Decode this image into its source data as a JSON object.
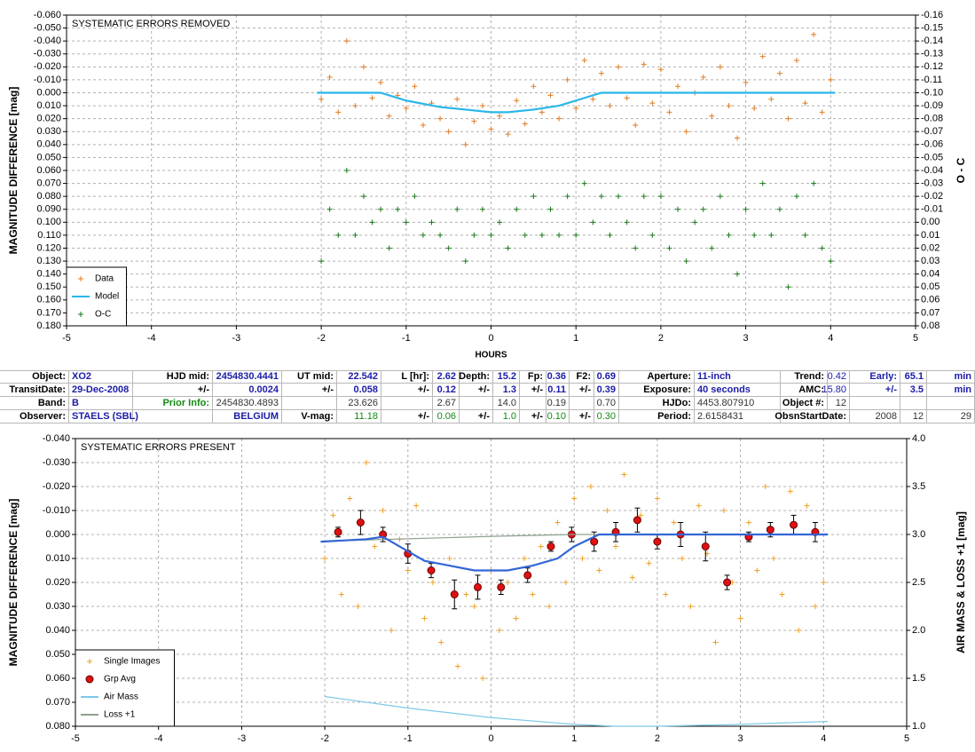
{
  "chart_data": [
    {
      "type": "scatter",
      "title": "SYSTEMATIC ERRORS REMOVED",
      "xlabel": "HOURS",
      "ylabel": "MAGNITUDE DIFFERENCE [mag]",
      "y2label": "O - C",
      "xlim": [
        -5,
        5
      ],
      "xticks": [
        -5,
        -4,
        -3,
        -2,
        -1,
        0,
        1,
        2,
        3,
        4,
        5
      ],
      "ylim": [
        0.18,
        -0.06
      ],
      "yticks": [
        {
          "value": -0.06,
          "label": "-0.060"
        },
        {
          "value": -0.05,
          "label": "-0.050"
        },
        {
          "value": -0.04,
          "label": "-0.040"
        },
        {
          "value": -0.03,
          "label": "-0.030"
        },
        {
          "value": -0.02,
          "label": "-0.020"
        },
        {
          "value": -0.01,
          "label": "-0.010"
        },
        {
          "value": 0,
          "label": "0.000"
        },
        {
          "value": 0.01,
          "label": "0.010"
        },
        {
          "value": 0.02,
          "label": "0.020"
        },
        {
          "value": 0.03,
          "label": "0.030"
        },
        {
          "value": 0.04,
          "label": "0.040"
        },
        {
          "value": 0.05,
          "label": "0.050"
        },
        {
          "value": 0.06,
          "label": "0.060"
        },
        {
          "value": 0.07,
          "label": "0.070"
        },
        {
          "value": 0.08,
          "label": "0.080"
        },
        {
          "value": 0.09,
          "label": "0.090"
        },
        {
          "value": 0.1,
          "label": "0.100"
        },
        {
          "value": 0.11,
          "label": "0.110"
        },
        {
          "value": 0.12,
          "label": "0.120"
        },
        {
          "value": 0.13,
          "label": "0.130"
        },
        {
          "value": 0.14,
          "label": "0.140"
        },
        {
          "value": 0.15,
          "label": "0.150"
        },
        {
          "value": 0.16,
          "label": "0.160"
        },
        {
          "value": 0.17,
          "label": "0.170"
        },
        {
          "value": 0.18,
          "label": "0.180"
        }
      ],
      "y2lim": [
        0.08,
        -0.16
      ],
      "y2ticks": [
        -0.16,
        -0.15,
        -0.14,
        -0.13,
        -0.12,
        -0.11,
        {
          "value": -0.1,
          "label": "-0.10"
        },
        -0.09,
        -0.08,
        -0.07,
        -0.06,
        -0.05,
        -0.04,
        -0.03,
        -0.02,
        -0.01,
        {
          "value": 0,
          "label": "0.00"
        },
        0.01,
        0.02,
        0.03,
        0.04,
        0.05,
        0.06,
        0.07,
        0.08
      ],
      "grid": true,
      "legend": "lower left",
      "series": [
        {
          "name": "Data",
          "type": "scatter",
          "marker": "+",
          "color": "#e07b20",
          "x": [
            -2,
            -1.9,
            -1.8,
            -1.7,
            -1.6,
            -1.5,
            -1.4,
            -1.3,
            -1.2,
            -1.1,
            -1,
            -0.9,
            -0.8,
            -0.7,
            -0.6,
            -0.5,
            -0.4,
            -0.3,
            -0.2,
            -0.1,
            0,
            0.1,
            0.2,
            0.3,
            0.4,
            0.5,
            0.6,
            0.7,
            0.8,
            0.9,
            1,
            1.1,
            1.2,
            1.3,
            1.4,
            1.5,
            1.6,
            1.7,
            1.8,
            1.9,
            2,
            2.1,
            2.2,
            2.3,
            2.4,
            2.5,
            2.6,
            2.7,
            2.8,
            2.9,
            3,
            3.1,
            3.2,
            3.3,
            3.4,
            3.5,
            3.6,
            3.7,
            3.8,
            3.9,
            4
          ],
          "values": [
            0.005,
            -0.012,
            0.015,
            -0.04,
            0.01,
            -0.02,
            0.004,
            -0.008,
            0.018,
            0.002,
            0.012,
            -0.005,
            0.025,
            0.008,
            0.02,
            0.03,
            0.005,
            0.04,
            0.022,
            0.01,
            0.028,
            0.018,
            0.032,
            0.006,
            0.024,
            -0.005,
            0.015,
            0.002,
            0.02,
            -0.01,
            0.012,
            -0.025,
            0.005,
            -0.015,
            0.01,
            -0.02,
            0.004,
            0.025,
            -0.022,
            0.008,
            -0.018,
            0.015,
            -0.005,
            0.03,
            0,
            -0.012,
            0.018,
            -0.02,
            0.01,
            0.035,
            -0.008,
            0.012,
            -0.028,
            0.005,
            -0.015,
            0.02,
            -0.025,
            0.008,
            -0.045,
            0.015,
            -0.01
          ]
        },
        {
          "name": "Model",
          "type": "line",
          "color": "#2ab7e8",
          "x": [
            -2.05,
            -1.3,
            -1,
            -0.6,
            -0.3,
            0,
            0.2,
            0.5,
            0.8,
            1,
            1.3,
            4.05
          ],
          "values": [
            0,
            0,
            0.006,
            0.011,
            0.013,
            0.015,
            0.015,
            0.013,
            0.01,
            0.006,
            0,
            0
          ]
        },
        {
          "name": "O-C",
          "type": "scatter",
          "marker": "+",
          "color": "#1a7a1a",
          "axis": "y2",
          "x": [
            -2,
            -1.9,
            -1.8,
            -1.7,
            -1.6,
            -1.5,
            -1.4,
            -1.3,
            -1.2,
            -1.1,
            -1,
            -0.9,
            -0.8,
            -0.7,
            -0.6,
            -0.5,
            -0.4,
            -0.3,
            -0.2,
            -0.1,
            0,
            0.1,
            0.2,
            0.3,
            0.4,
            0.5,
            0.6,
            0.7,
            0.8,
            0.9,
            1,
            1.1,
            1.2,
            1.3,
            1.4,
            1.5,
            1.6,
            1.7,
            1.8,
            1.9,
            2,
            2.1,
            2.2,
            2.3,
            2.4,
            2.5,
            2.6,
            2.7,
            2.8,
            2.9,
            3,
            3.1,
            3.2,
            3.3,
            3.4,
            3.5,
            3.6,
            3.7,
            3.8,
            3.9,
            4
          ],
          "values": [
            0.03,
            -0.01,
            0.01,
            -0.04,
            0.01,
            -0.02,
            0,
            -0.01,
            0.02,
            -0.01,
            0,
            -0.02,
            0.01,
            0,
            0.01,
            0.02,
            -0.01,
            0.03,
            0.01,
            -0.01,
            0.01,
            0,
            0.02,
            -0.01,
            0.01,
            -0.02,
            0.01,
            -0.01,
            0.01,
            -0.02,
            0.01,
            -0.03,
            0,
            -0.02,
            0.01,
            -0.02,
            0,
            0.02,
            -0.02,
            0.01,
            -0.02,
            0.02,
            -0.01,
            0.03,
            0,
            -0.01,
            0.02,
            -0.02,
            0.01,
            0.04,
            -0.01,
            0.01,
            -0.03,
            0.01,
            -0.01,
            0.05,
            -0.02,
            0.01,
            -0.03,
            0.02,
            0.03
          ]
        }
      ]
    },
    {
      "type": "scatter",
      "title": "SYSTEMATIC ERRORS PRESENT",
      "ylabel": "MAGNITUDE DIFFERENCE [mag]",
      "y2label": "AIR MASS & LOSS +1 [mag]",
      "xlim": [
        -5,
        5
      ],
      "xticks": [
        -5,
        -4,
        -3,
        -2,
        -1,
        0,
        1,
        2,
        3,
        4,
        5
      ],
      "ylim": [
        0.08,
        -0.04
      ],
      "yticks": [
        {
          "value": -0.04,
          "label": "-0.040"
        },
        {
          "value": -0.03,
          "label": "-0.030"
        },
        {
          "value": -0.02,
          "label": "-0.020"
        },
        {
          "value": -0.01,
          "label": "-0.010"
        },
        {
          "value": 0,
          "label": "0.000"
        },
        {
          "value": 0.01,
          "label": "0.010"
        },
        {
          "value": 0.02,
          "label": "0.020"
        },
        {
          "value": 0.03,
          "label": "0.030"
        },
        {
          "value": 0.04,
          "label": "0.040"
        },
        {
          "value": 0.05,
          "label": "0.050"
        },
        {
          "value": 0.06,
          "label": "0.060"
        },
        {
          "value": 0.07,
          "label": "0.070"
        },
        {
          "value": 0.08,
          "label": "0.080"
        }
      ],
      "y2lim": [
        1,
        4
      ],
      "y2ticks": [
        {
          "value": 1,
          "label": "1.0"
        },
        1.5,
        {
          "value": 2,
          "label": "2.0"
        },
        2.5,
        {
          "value": 3,
          "label": "3.0"
        },
        3.5,
        {
          "value": 4,
          "label": "4.0"
        }
      ],
      "grid": true,
      "legend": "lower left",
      "series": [
        {
          "name": "Single Images",
          "type": "scatter",
          "marker": "+",
          "color": "#f0a020",
          "x": [
            -2,
            -1.9,
            -1.8,
            -1.7,
            -1.6,
            -1.5,
            -1.4,
            -1.3,
            -1.2,
            -1.1,
            -1,
            -0.9,
            -0.8,
            -0.7,
            -0.6,
            -0.5,
            -0.4,
            -0.3,
            -0.2,
            -0.1,
            0,
            0.1,
            0.2,
            0.3,
            0.4,
            0.5,
            0.6,
            0.7,
            0.8,
            0.9,
            1,
            1.1,
            1.2,
            1.3,
            1.4,
            1.5,
            1.6,
            1.7,
            1.8,
            1.9,
            2,
            2.1,
            2.2,
            2.3,
            2.4,
            2.5,
            2.6,
            2.7,
            2.8,
            2.9,
            3,
            3.1,
            3.2,
            3.3,
            3.4,
            3.5,
            3.6,
            3.7,
            3.8,
            3.9,
            4
          ],
          "values": [
            0.01,
            -0.008,
            0.025,
            -0.015,
            0.03,
            -0.03,
            0.005,
            -0.01,
            0.04,
            0.002,
            0.015,
            -0.012,
            0.035,
            0.02,
            0.045,
            0.01,
            0.055,
            0.025,
            0.03,
            0.06,
            0.015,
            0.04,
            0.02,
            0.035,
            0.01,
            0.025,
            0.005,
            0.03,
            -0.005,
            0.02,
            -0.015,
            0.01,
            -0.02,
            0.015,
            -0.01,
            0.005,
            -0.025,
            0.018,
            -0.008,
            0.012,
            -0.015,
            0.025,
            -0.005,
            0.01,
            0.03,
            -0.012,
            0.008,
            0.045,
            -0.01,
            0.02,
            0.035,
            -0.005,
            0.015,
            -0.02,
            0.01,
            0.025,
            -0.018,
            0.04,
            -0.012,
            0.03,
            0.02
          ]
        },
        {
          "name": "Grp Avg",
          "type": "scatter",
          "marker": "circle",
          "color": "#e01010",
          "x": [
            -1.84,
            -1.57,
            -1.3,
            -1,
            -0.72,
            -0.44,
            -0.16,
            0.12,
            0.44,
            0.72,
            0.97,
            1.24,
            1.5,
            1.76,
            2,
            2.28,
            2.58,
            2.84,
            3.1,
            3.36,
            3.64,
            3.9
          ],
          "values": [
            -0.001,
            -0.005,
            0,
            0.008,
            0.015,
            0.025,
            0.022,
            0.022,
            0.017,
            0.005,
            0,
            0.003,
            -0.001,
            -0.006,
            0.003,
            0,
            0.005,
            0.02,
            0.001,
            -0.002,
            -0.004,
            -0.001
          ],
          "errors": [
            0.002,
            0.005,
            0.003,
            0.004,
            0.003,
            0.006,
            0.005,
            0.003,
            0.003,
            0.002,
            0.003,
            0.004,
            0.004,
            0.005,
            0.003,
            0.005,
            0.006,
            0.003,
            0.002,
            0.003,
            0.004,
            0.004
          ]
        },
        {
          "name": "Air Mass",
          "type": "line",
          "color": "#7ec8e8",
          "axis": "y2",
          "x": [
            -2,
            -1,
            0,
            1,
            1.5,
            2,
            3,
            4.05
          ],
          "values": [
            1.31,
            1.19,
            1.09,
            1.02,
            1,
            1,
            1.02,
            1.05
          ]
        },
        {
          "name": "Loss +1",
          "type": "line",
          "color": "#8fa08f",
          "axis": "y2",
          "x": [
            -2,
            0,
            1,
            4.05
          ],
          "values": [
            2.93,
            2.98,
            3,
            3
          ]
        },
        {
          "name": "Model",
          "type": "line",
          "color": "#3366d6",
          "legend": false,
          "x": [
            -2.05,
            -1.5,
            -1.3,
            -1,
            -0.8,
            -0.5,
            -0.2,
            0.2,
            0.5,
            0.8,
            1,
            1.3,
            4.05
          ],
          "values": [
            0.003,
            0.002,
            0.001,
            0.007,
            0.011,
            0.013,
            0.015,
            0.015,
            0.013,
            0.01,
            0.005,
            0,
            0
          ]
        }
      ]
    }
  ],
  "table": {
    "rows": [
      [
        "Object:",
        "XO2",
        "HJD mid:",
        "2454830.4441",
        "UT mid:",
        "22.542",
        "L [hr]:",
        "2.62",
        "Depth:",
        "15.2",
        "Fp:",
        "0.36",
        "F2:",
        "0.69",
        "Aperture:",
        "11-inch",
        "Trend:",
        "0.42",
        "Early:",
        "65.1",
        "min"
      ],
      [
        "TransitDate:",
        "29-Dec-2008",
        "+/-",
        "0.0024",
        "+/-",
        "0.058",
        "+/-",
        "0.12",
        "+/-",
        "1.3",
        "+/-",
        "0.11",
        "+/-",
        "0.39",
        "Exposure:",
        "40 seconds",
        "AMC:",
        "15.80",
        "+/-",
        "3.5",
        "min"
      ],
      [
        "Band:",
        "B",
        "Prior Info:",
        "2454830.4893",
        null,
        "23.626",
        null,
        "2.67",
        null,
        "14.0",
        null,
        "0.19",
        null,
        "0.70",
        "HJDo:",
        "4453.807910",
        "Object #:",
        "12",
        null,
        null,
        null
      ],
      [
        "Observer:",
        "STAELS (SBL)",
        null,
        "BELGIUM",
        "V-mag:",
        "11.18",
        "+/-",
        "0.06",
        "+/-",
        "1.0",
        "+/-",
        "0.10",
        "+/-",
        "0.30",
        "Period:",
        "2.6158431",
        "ObsnStartDate:",
        null,
        "2008",
        "12",
        "29"
      ]
    ]
  }
}
